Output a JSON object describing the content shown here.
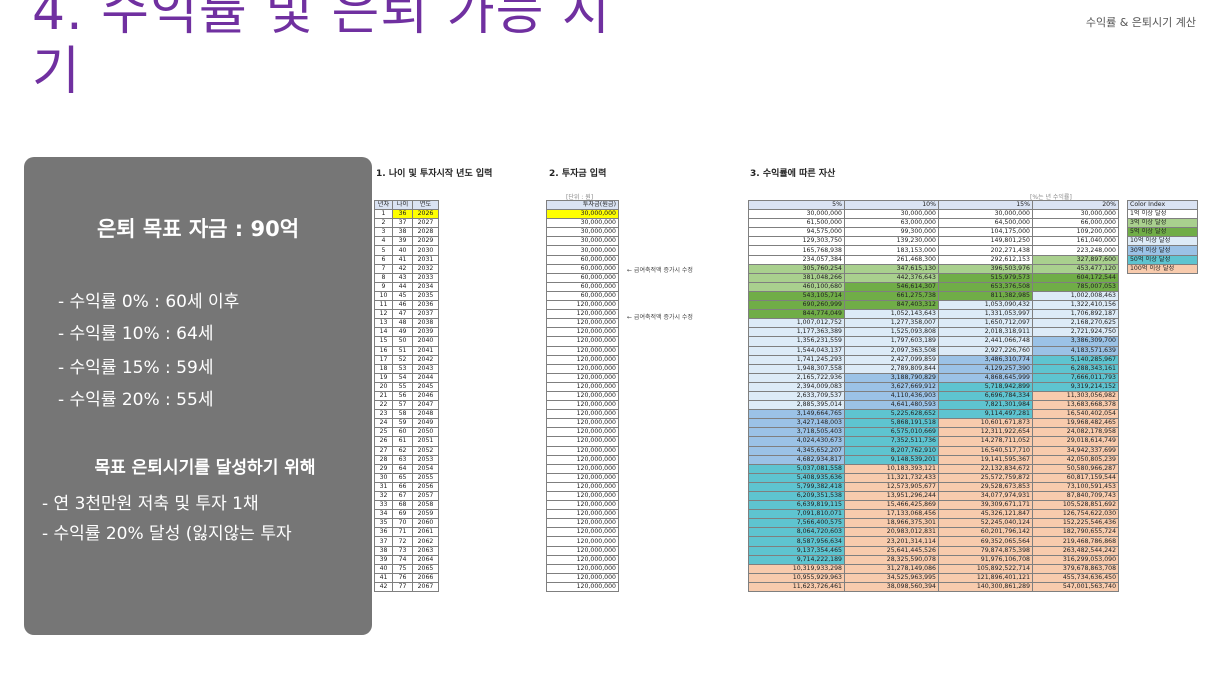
{
  "slide": {
    "title": "4. 수익률 및 은퇴 가능 시기",
    "subtitle": "수익률 & 은퇴시기 계산"
  },
  "panel": {
    "goal": "은퇴 목표 자금 : 90억",
    "bullets": [
      "- 수익률   0% : 60세 이후",
      "- 수익률 10% : 64세",
      "- 수익률 15% : 59세",
      "- 수익률 20% : 55세"
    ],
    "plan_title": "목표 은퇴시기를 달성하기 위해",
    "plan_items": [
      "- 연 3천만원 저축 및 투자 1채",
      "- 수익률 20% 달성 (잃지않는 투자"
    ]
  },
  "sheet": {
    "sec1": "1. 나이 및 투자시작 년도 입력",
    "sec2": "2. 투자금 입력",
    "sec3": "3. 수익률에 따른 자산",
    "unit2": "[단위 : 원]",
    "unit3": "[%는 년 수익률]",
    "headers_age": [
      "년차",
      "나이",
      "연도"
    ],
    "header_invest": "투자금(원금)",
    "headers_returns": [
      "5%",
      "10%",
      "15%",
      "20%"
    ],
    "note": "← 급여축적액 증가시 수정",
    "color_index_header": "Color Index",
    "color_index": [
      {
        "label": "1억 이상 달성",
        "color": "#ffffff"
      },
      {
        "label": "3억 이상 달성",
        "color": "#a9d08e"
      },
      {
        "label": "5억 이상 달성",
        "color": "#70ad47"
      },
      {
        "label": "10억 이상 달성",
        "color": "#ddebf7"
      },
      {
        "label": "30억 이상 달성",
        "color": "#9bc2e6"
      },
      {
        "label": "50억 이상 달성",
        "color": "#5ec4d0"
      },
      {
        "label": "100억 이상 달성",
        "color": "#f8cbad"
      }
    ],
    "colors": {
      "input_yellow": "#ffff00",
      "header_blue": "#dae3f3",
      "title_purple": "#7030a0",
      "panel_gray": "#767676"
    },
    "invest": [
      "30,000,000",
      "30,000,000",
      "30,000,000",
      "30,000,000",
      "30,000,000",
      "60,000,000",
      "60,000,000",
      "60,000,000",
      "60,000,000",
      "60,000,000",
      "120,000,000",
      "120,000,000",
      "120,000,000",
      "120,000,000",
      "120,000,000",
      "120,000,000",
      "120,000,000",
      "120,000,000",
      "120,000,000",
      "120,000,000",
      "120,000,000",
      "120,000,000",
      "120,000,000",
      "120,000,000",
      "120,000,000",
      "120,000,000",
      "120,000,000",
      "120,000,000",
      "120,000,000",
      "120,000,000",
      "120,000,000",
      "120,000,000",
      "120,000,000",
      "120,000,000",
      "120,000,000",
      "120,000,000",
      "120,000,000",
      "120,000,000",
      "120,000,000",
      "120,000,000",
      "120,000,000",
      "120,000,000"
    ],
    "r5": [
      "30,000,000",
      "61,500,000",
      "94,575,000",
      "129,303,750",
      "165,768,938",
      "234,057,384",
      "305,760,254",
      "381,048,266",
      "460,100,680",
      "543,105,714",
      "690,260,999",
      "844,774,049",
      "1,007,012,752",
      "1,177,363,389",
      "1,356,231,559",
      "1,544,043,137",
      "1,741,245,293",
      "1,948,307,558",
      "2,165,722,936",
      "2,394,009,083",
      "2,633,709,537",
      "2,885,395,014",
      "3,149,664,765",
      "3,427,148,003",
      "3,718,505,403",
      "4,024,430,673",
      "4,345,652,207",
      "4,682,934,817",
      "5,037,081,558",
      "5,408,935,636",
      "5,799,382,418",
      "6,209,351,538",
      "6,639,819,115",
      "7,091,810,071",
      "7,566,400,575",
      "8,064,720,603",
      "8,587,956,634",
      "9,137,354,465",
      "9,714,222,189",
      "10,319,933,298",
      "10,955,929,963",
      "11,623,726,461"
    ],
    "r10": [
      "30,000,000",
      "63,000,000",
      "99,300,000",
      "139,230,000",
      "183,153,000",
      "261,468,300",
      "347,615,130",
      "442,376,643",
      "546,614,307",
      "661,275,738",
      "847,403,312",
      "1,052,143,643",
      "1,277,358,007",
      "1,525,093,808",
      "1,797,603,189",
      "2,097,363,508",
      "2,427,099,859",
      "2,789,809,844",
      "3,188,790,829",
      "3,627,669,912",
      "4,110,436,903",
      "4,641,480,593",
      "5,225,628,652",
      "5,868,191,518",
      "6,575,010,669",
      "7,352,511,736",
      "8,207,762,910",
      "9,148,539,201",
      "10,183,393,121",
      "11,321,732,433",
      "12,573,905,677",
      "13,951,296,244",
      "15,466,425,869",
      "17,133,068,456",
      "18,966,375,301",
      "20,983,012,831",
      "23,201,314,114",
      "25,641,445,526",
      "28,325,590,078",
      "31,278,149,086",
      "34,525,963,995",
      "38,098,560,394"
    ],
    "r15": [
      "30,000,000",
      "64,500,000",
      "104,175,000",
      "149,801,250",
      "202,271,438",
      "292,612,153",
      "396,503,976",
      "515,979,573",
      "653,376,508",
      "811,382,985",
      "1,053,090,432",
      "1,331,053,997",
      "1,650,712,097",
      "2,018,318,911",
      "2,441,066,748",
      "2,927,226,760",
      "3,486,310,774",
      "4,129,257,390",
      "4,868,645,999",
      "5,718,942,899",
      "6,696,784,334",
      "7,821,301,984",
      "9,114,497,281",
      "10,601,671,873",
      "12,311,922,654",
      "14,278,711,052",
      "16,540,517,710",
      "19,141,595,367",
      "22,132,834,672",
      "25,572,759,872",
      "29,528,673,853",
      "34,077,974,931",
      "39,309,671,171",
      "45,326,121,847",
      "52,245,040,124",
      "60,201,796,142",
      "69,352,065,564",
      "79,874,875,398",
      "91,976,106,708",
      "105,892,522,714",
      "121,896,401,121",
      "140,300,861,289"
    ],
    "r20": [
      "30,000,000",
      "66,000,000",
      "109,200,000",
      "161,040,000",
      "223,248,000",
      "327,897,600",
      "453,477,120",
      "604,172,544",
      "785,007,053",
      "1,002,008,463",
      "1,322,410,156",
      "1,706,892,187",
      "2,168,270,625",
      "2,721,924,750",
      "3,386,309,700",
      "4,183,571,639",
      "5,140,285,967",
      "6,288,343,161",
      "7,666,011,793",
      "9,319,214,152",
      "11,303,056,982",
      "13,683,668,378",
      "16,540,402,054",
      "19,968,482,465",
      "24,082,178,958",
      "29,018,614,749",
      "34,942,337,699",
      "42,050,805,239",
      "50,580,966,287",
      "60,817,159,544",
      "73,100,591,453",
      "87,840,709,743",
      "105,528,851,692",
      "126,754,622,030",
      "152,225,546,436",
      "182,790,655,724",
      "219,468,786,868",
      "263,482,544,242",
      "316,299,053,090",
      "379,678,863,708",
      "455,734,636,450",
      "547,001,563,740"
    ]
  }
}
